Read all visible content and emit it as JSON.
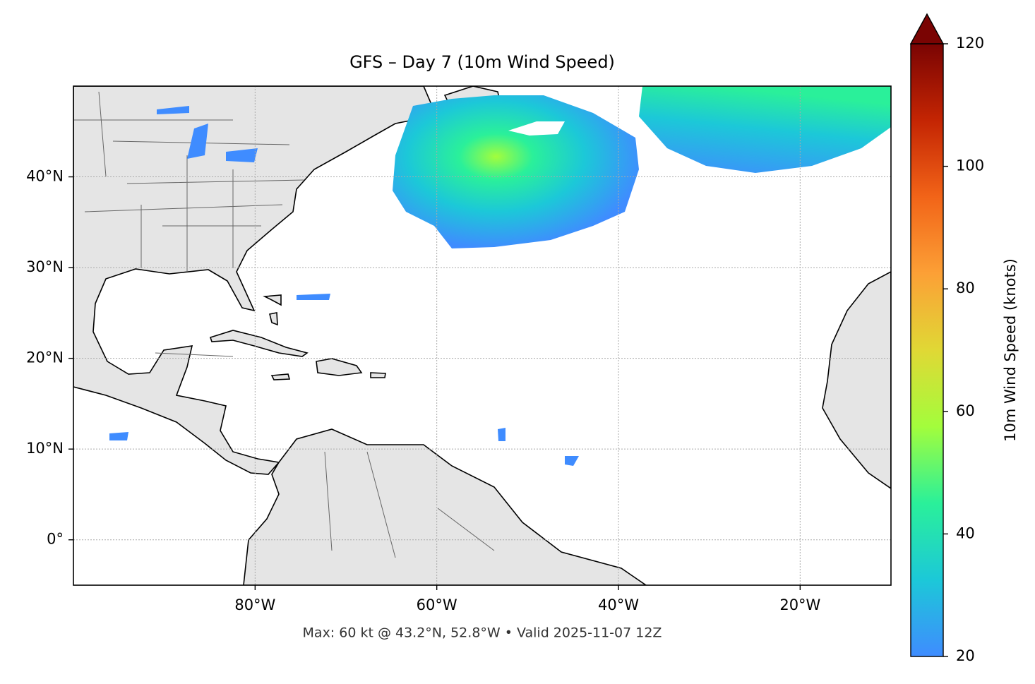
{
  "chart_data": {
    "type": "map",
    "title": "GFS – Day 7 (10m Wind Speed)",
    "footer": "Max: 60 kt @ 43.2°N, 52.8°W • Valid 2025-11-07 12Z",
    "xlim": [
      -100,
      -10
    ],
    "ylim": [
      -5,
      50
    ],
    "xticks": [
      {
        "value": -80,
        "label": "80°W"
      },
      {
        "value": -60,
        "label": "60°W"
      },
      {
        "value": -40,
        "label": "40°W"
      },
      {
        "value": -20,
        "label": "20°W"
      }
    ],
    "yticks": [
      {
        "value": 0,
        "label": "0°"
      },
      {
        "value": 10,
        "label": "10°N"
      },
      {
        "value": 20,
        "label": "20°N"
      },
      {
        "value": 30,
        "label": "30°N"
      },
      {
        "value": 40,
        "label": "40°N"
      }
    ],
    "grid": true,
    "colorbar": {
      "label": "10m Wind Speed (knots)",
      "lim": [
        20,
        120
      ],
      "ticks": [
        20,
        40,
        60,
        80,
        100,
        120
      ],
      "colors": [
        "#3f8cff",
        "#1cc8d8",
        "#2af09a",
        "#a3fd3c",
        "#e0d835",
        "#fca036",
        "#f26418",
        "#c42503",
        "#7a0403"
      ]
    }
  }
}
